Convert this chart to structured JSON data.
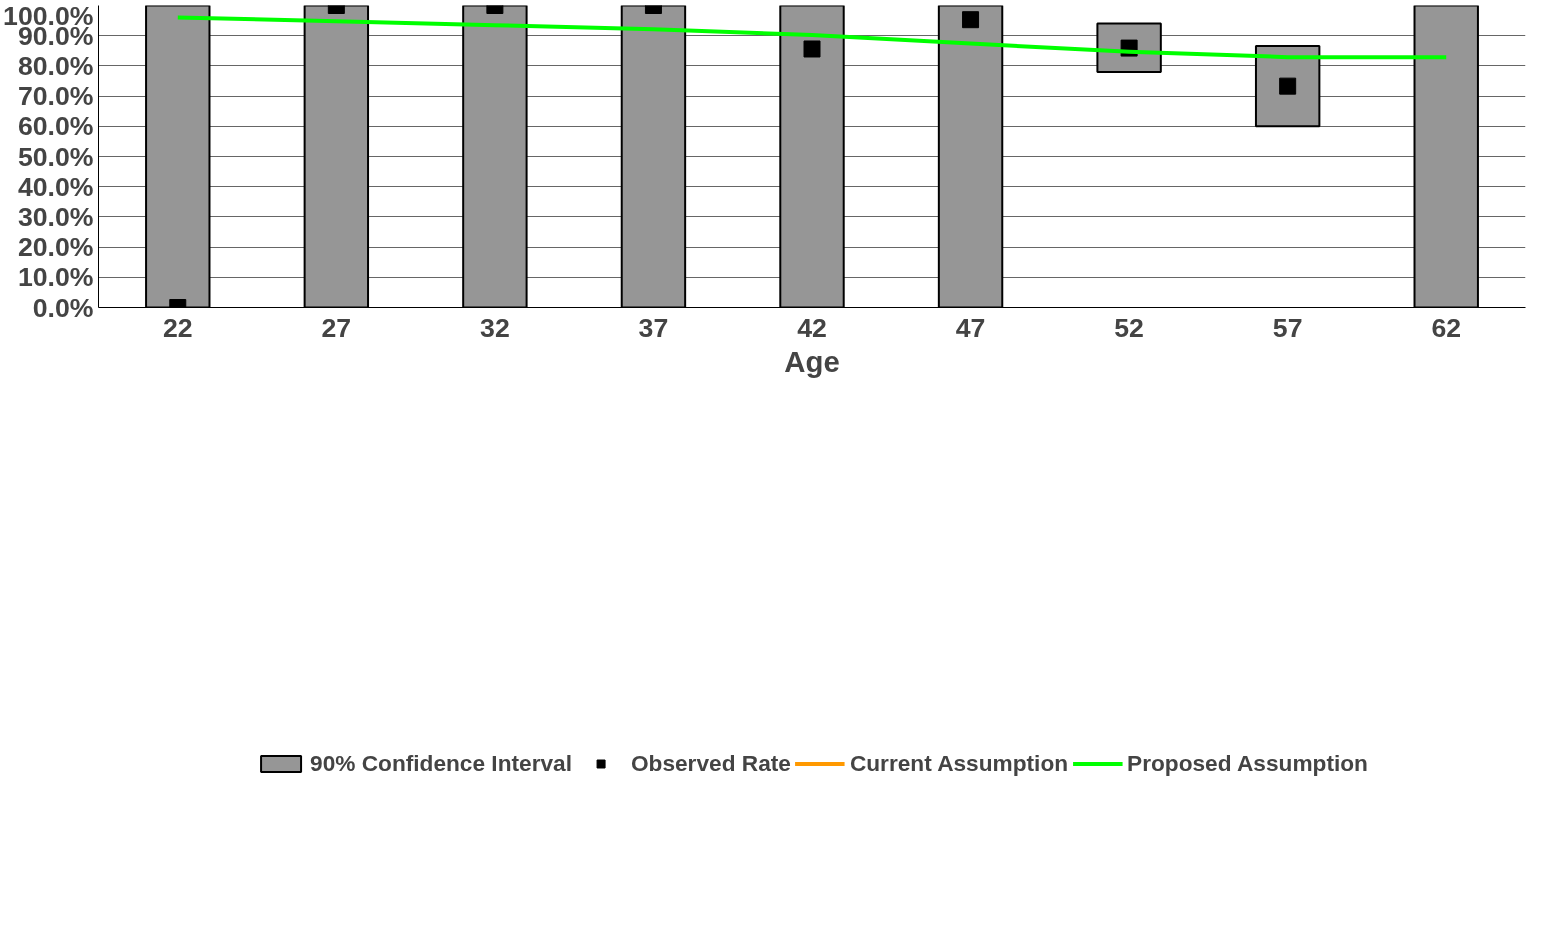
{
  "chart_data": {
    "type": "bar",
    "xlabel": "Age",
    "categories": [
      "22",
      "27",
      "32",
      "37",
      "42",
      "47",
      "52",
      "57",
      "62"
    ],
    "series": [
      {
        "name": "90% Confidence Interval",
        "color": "#969696",
        "base": [
          0,
          0,
          0,
          0,
          0,
          0,
          78,
          60,
          0
        ],
        "values": [
          100,
          100,
          100,
          100,
          100,
          100,
          16,
          26.6,
          100
        ]
      },
      {
        "type": "scatter",
        "name": "Observed Rate",
        "color": "#000000",
        "marker": "square",
        "values": [
          0,
          100,
          100,
          100,
          85.6,
          95.3,
          85.9,
          73.3,
          null
        ]
      },
      {
        "type": "line",
        "name": "Current Assumption",
        "color": "#ff9900",
        "values": [
          null,
          null,
          null,
          null,
          null,
          null,
          null,
          null,
          null
        ]
      },
      {
        "type": "line",
        "name": "Proposed Assumption",
        "color": "#00ff00",
        "values": [
          96.0,
          94.8,
          93.5,
          92.1,
          90.2,
          87.4,
          84.7,
          82.9,
          82.9
        ]
      }
    ],
    "ylim": [
      0,
      100
    ],
    "yticks": [
      {
        "value": 0,
        "label": "0.0%"
      },
      {
        "value": 10,
        "label": "10.0%"
      },
      {
        "value": 20,
        "label": "20.0%"
      },
      {
        "value": 30,
        "label": "30.0%"
      },
      {
        "value": 40,
        "label": "40.0%"
      },
      {
        "value": 50,
        "label": "50.0%"
      },
      {
        "value": 60,
        "label": "60.0%"
      },
      {
        "value": 70,
        "label": "70.0%"
      },
      {
        "value": 80,
        "label": "80.0%"
      },
      {
        "value": 90,
        "label": "90.0%"
      },
      {
        "value": 100,
        "label": "100.0%"
      }
    ],
    "grid": "y",
    "legend": "bottom"
  }
}
